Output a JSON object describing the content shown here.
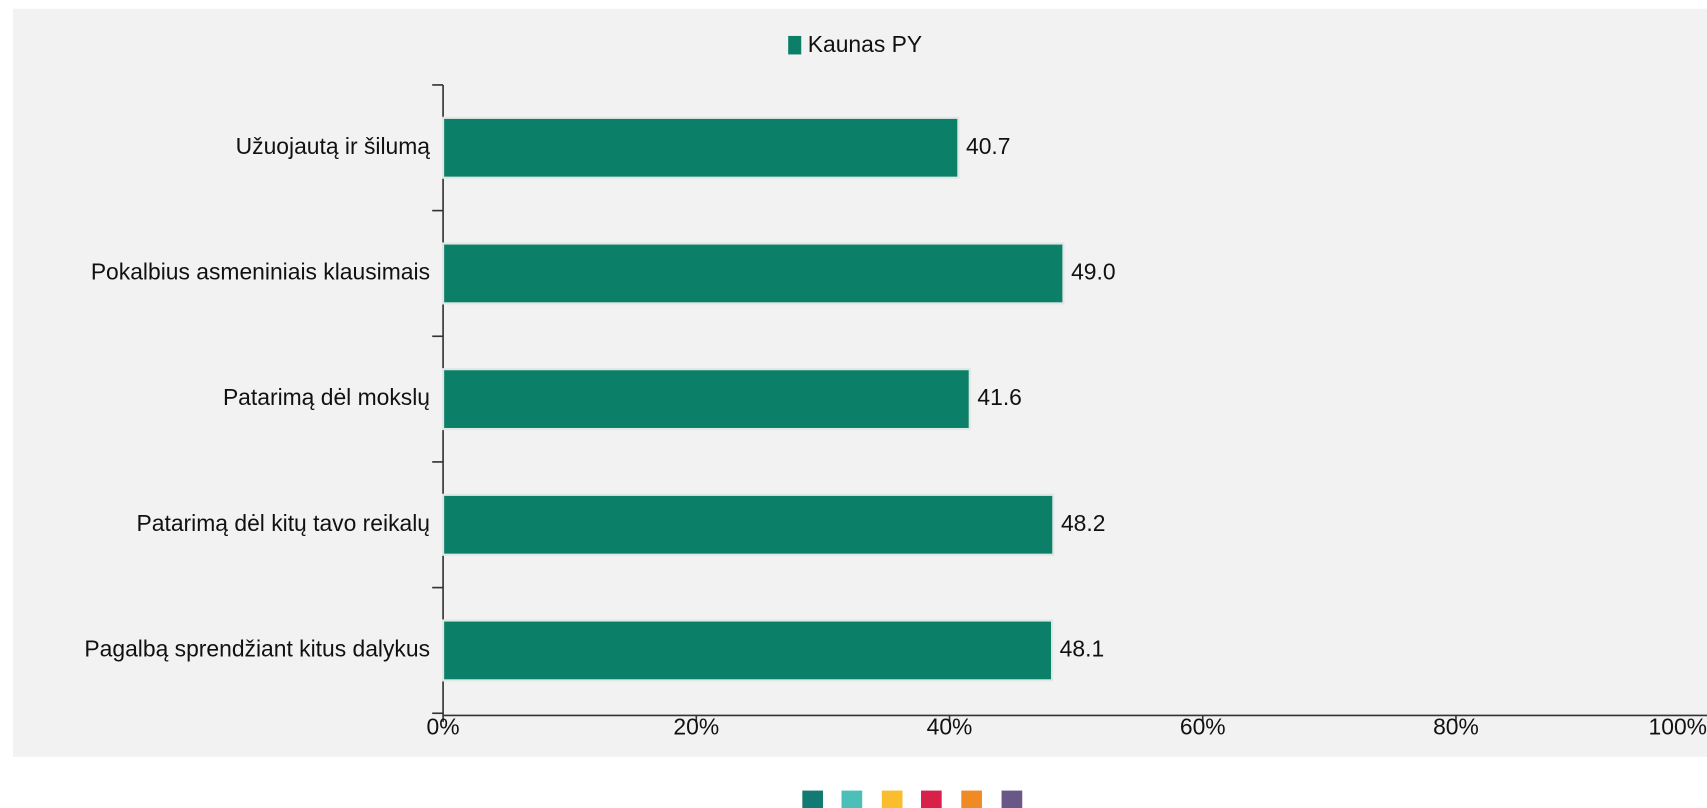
{
  "chart_data": {
    "type": "bar",
    "orientation": "horizontal",
    "legend": "Kaunas PY",
    "legend_position": "top",
    "categories": [
      "Užuojautą ir šilumą",
      "Pokalbius asmeniniais klausimais",
      "Patarimą dėl mokslų",
      "Patarimą dėl kitų tavo reikalų",
      "Pagalbą sprendžiant kitus dalykus"
    ],
    "values": [
      40.7,
      49.0,
      41.6,
      48.2,
      48.1
    ],
    "value_labels": [
      "40.7",
      "49.0",
      "41.6",
      "48.2",
      "48.1"
    ],
    "color": "#0b7f67",
    "xlim": [
      0,
      100
    ],
    "xticks": [
      {
        "value": 0,
        "label": "0%"
      },
      {
        "value": 20,
        "label": "20%"
      },
      {
        "value": 40,
        "label": "40%"
      },
      {
        "value": 60,
        "label": "60%"
      },
      {
        "value": 80,
        "label": "80%"
      },
      {
        "value": 100,
        "label": "100%"
      }
    ],
    "grid": false
  }
}
